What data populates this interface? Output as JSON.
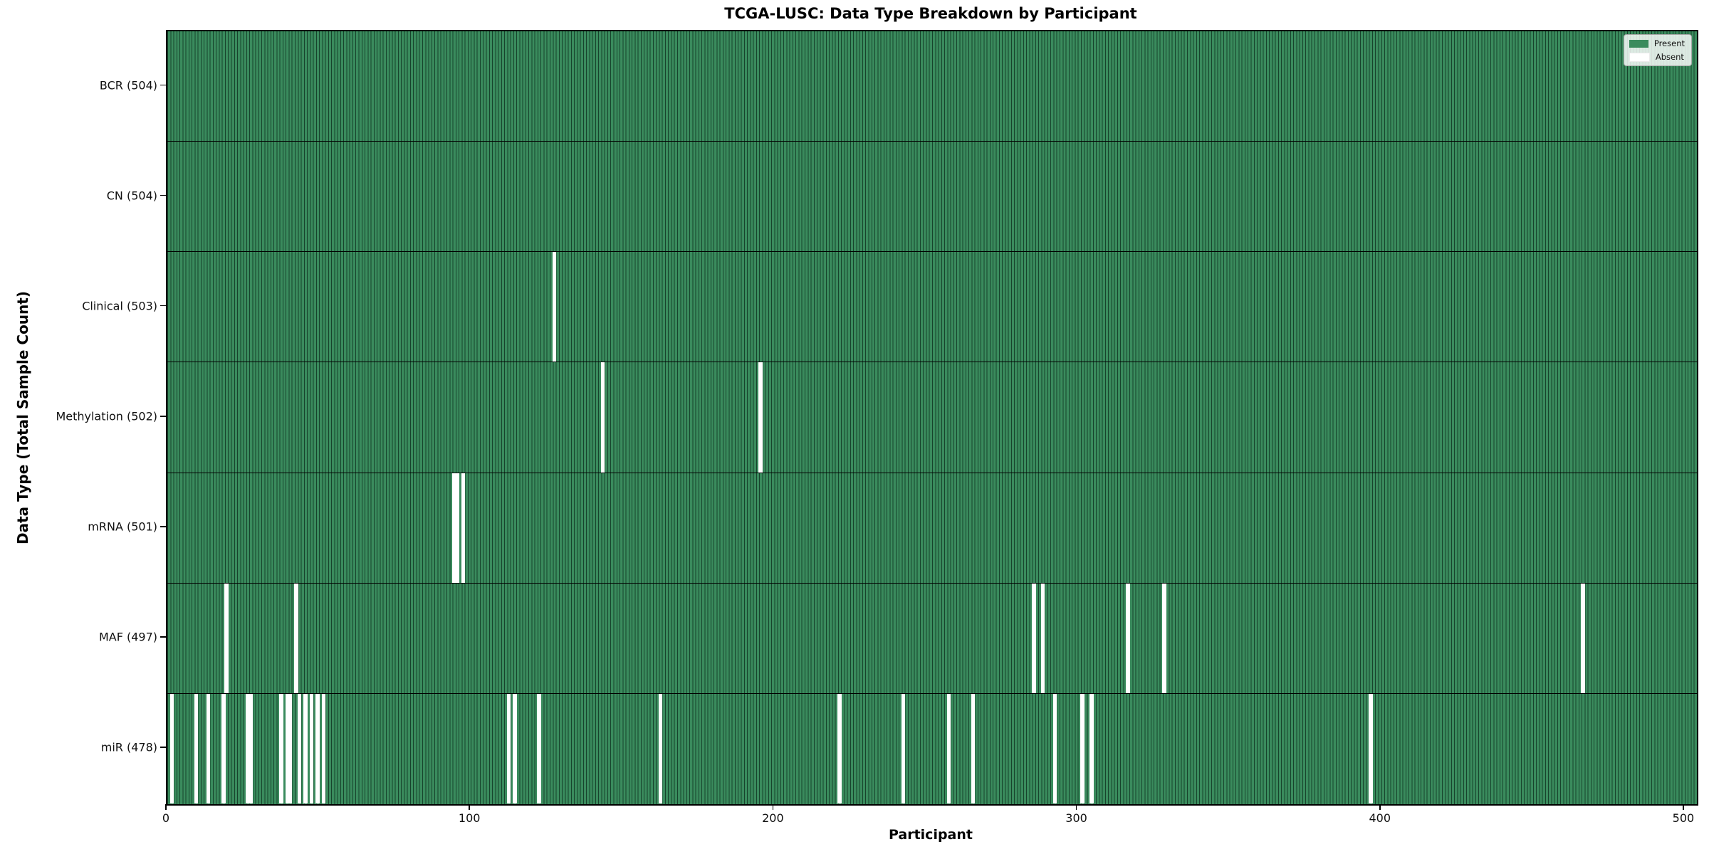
{
  "title": "TCGA-LUSC: Data Type Breakdown by Participant",
  "chart_data": {
    "type": "heatmap",
    "title": "TCGA-LUSC: Data Type Breakdown by Participant",
    "xlabel": "Participant",
    "ylabel": "Data Type (Total Sample Count)",
    "x_ticks": [
      0,
      100,
      200,
      300,
      400,
      500
    ],
    "xlim": [
      0,
      504
    ],
    "n_participants": 504,
    "grid": false,
    "legend_position": "upper right",
    "legend": {
      "entries": [
        {
          "label": "Present",
          "color": "#3a8b5d"
        },
        {
          "label": "Absent",
          "color": "#ffffff"
        }
      ]
    },
    "rows": [
      {
        "name": "BCR",
        "label": "BCR (504)",
        "total": 504,
        "absent_participants": []
      },
      {
        "name": "CN",
        "label": "CN (504)",
        "total": 504,
        "absent_participants": []
      },
      {
        "name": "Clinical",
        "label": "Clinical (503)",
        "total": 503,
        "absent_participants": [
          128
        ]
      },
      {
        "name": "Methylation",
        "label": "Methylation (502)",
        "total": 502,
        "absent_participants": [
          144,
          196
        ]
      },
      {
        "name": "mRNA",
        "label": "mRNA (501)",
        "total": 501,
        "absent_participants": [
          95,
          96,
          98
        ]
      },
      {
        "name": "MAF",
        "label": "MAF (497)",
        "total": 497,
        "absent_participants": [
          20,
          43,
          286,
          289,
          317,
          329,
          467
        ]
      },
      {
        "name": "miR",
        "label": "miR (478)",
        "total": 478,
        "absent_participants": [
          2,
          10,
          14,
          19,
          27,
          28,
          38,
          40,
          41,
          44,
          46,
          48,
          50,
          52,
          113,
          115,
          123,
          163,
          222,
          243,
          258,
          266,
          293,
          302,
          305,
          397
        ]
      }
    ],
    "colors": {
      "present": "#3a8b5d",
      "absent": "#ffffff",
      "bar_edge": "#17432c"
    }
  }
}
